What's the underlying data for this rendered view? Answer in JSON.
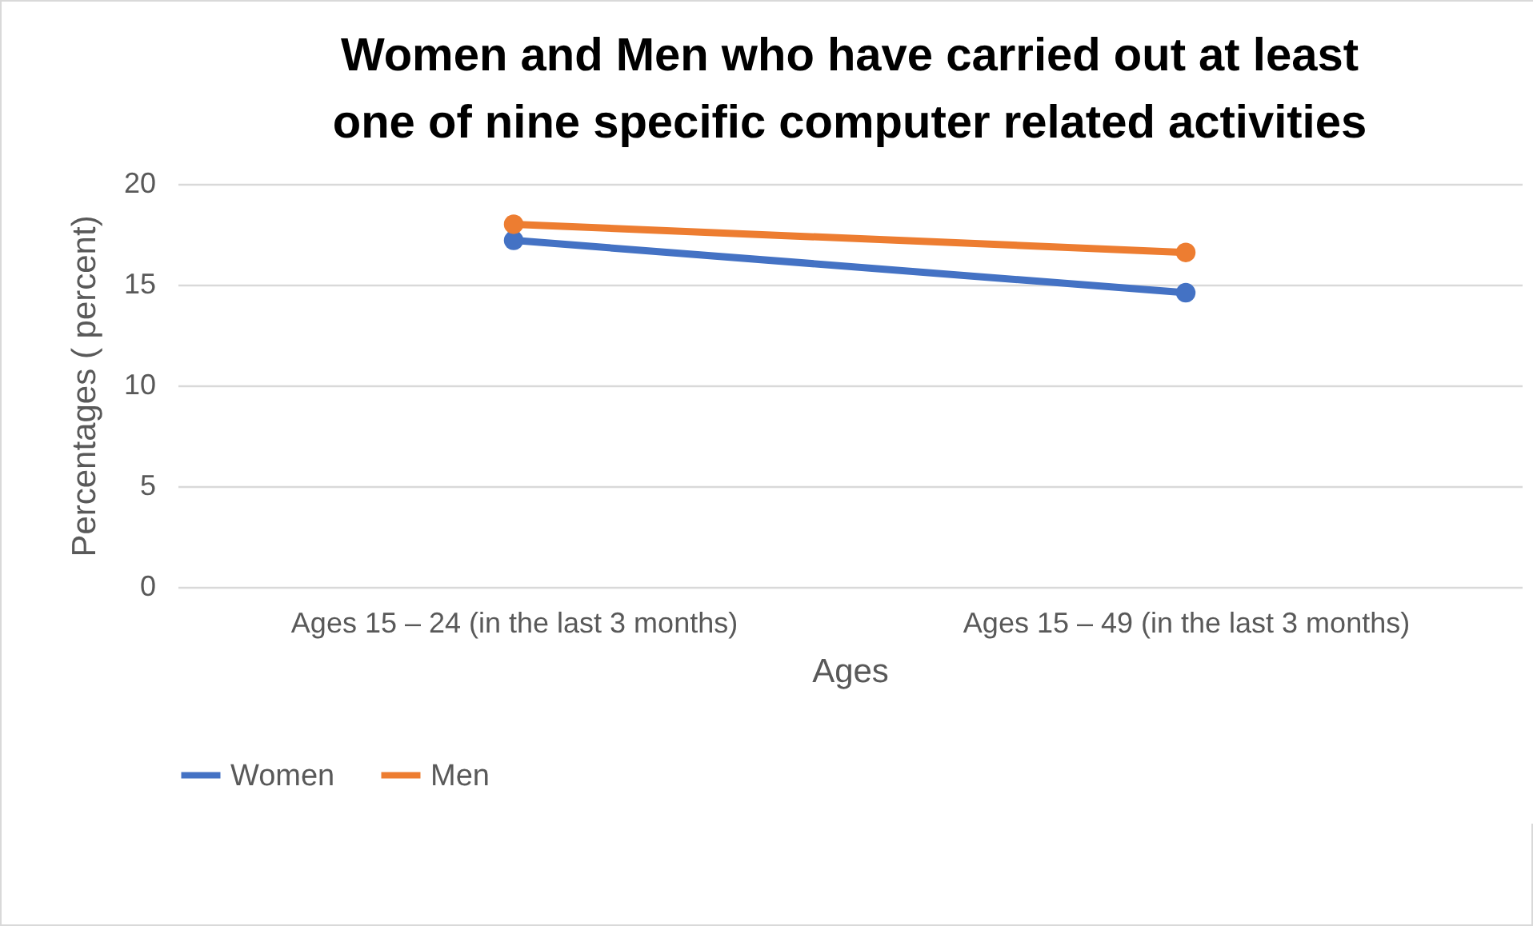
{
  "chart_data": {
    "type": "line",
    "title": [
      "Women and Men who have carried out at least",
      "one of nine specific computer related activities"
    ],
    "xlabel": "Ages",
    "ylabel": "Percentages ( percent)",
    "categories": [
      "Ages 15 – 24 (in the last 3 months)",
      "Ages 15 – 49 (in the last 3 months)"
    ],
    "series": [
      {
        "name": "Women",
        "color": "#4472c4",
        "values": [
          17.2,
          14.6
        ]
      },
      {
        "name": "Men",
        "color": "#ed7d31",
        "values": [
          18.0,
          16.6
        ]
      }
    ],
    "ylim": [
      0,
      20
    ],
    "yticks": [
      0,
      5,
      10,
      15,
      20
    ],
    "grid": "y",
    "legend": "bottom",
    "marker": "circle"
  }
}
